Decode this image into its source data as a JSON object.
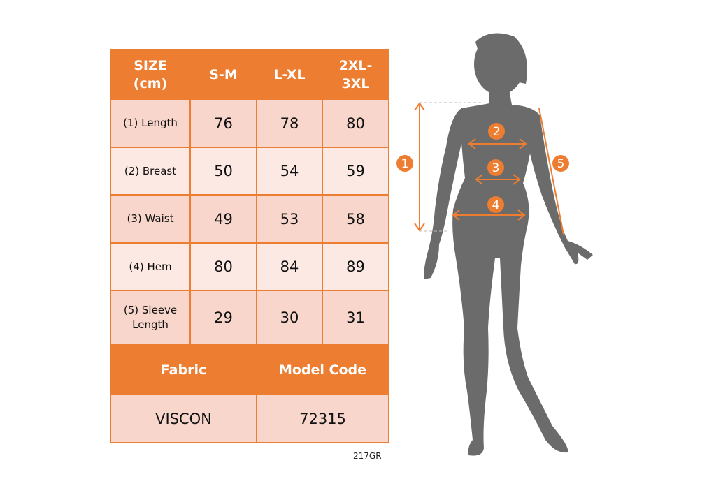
{
  "table": {
    "headers": [
      "SIZE\n(cm)",
      "S-M",
      "L-XL",
      "2XL-\n3XL"
    ],
    "rows": [
      {
        "label": "(1) Length",
        "values": [
          "76",
          "78",
          "80"
        ]
      },
      {
        "label": "(2) Breast",
        "values": [
          "50",
          "54",
          "59"
        ]
      },
      {
        "label": "(3) Waist",
        "values": [
          "49",
          "53",
          "58"
        ]
      },
      {
        "label": "(4) Hem",
        "values": [
          "80",
          "84",
          "89"
        ]
      },
      {
        "label": "(5) Sleeve\nLength",
        "values": [
          "29",
          "30",
          "31"
        ]
      }
    ],
    "footer_headers": [
      "Fabric",
      "Model Code"
    ],
    "footer_values": [
      "VISCON",
      "72315"
    ]
  },
  "product_code": "217GR",
  "figure": {
    "markers": [
      "1",
      "2",
      "3",
      "4",
      "5"
    ]
  },
  "colors": {
    "accent": "#ED7D31",
    "row_dark": "#F8D6CB",
    "row_light": "#FCE9E3",
    "silhouette": "#6B6B6B"
  }
}
